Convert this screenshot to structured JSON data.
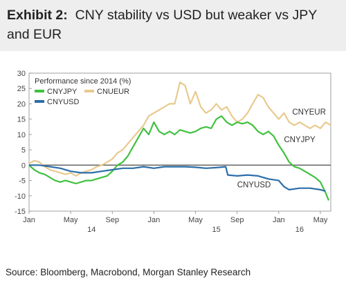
{
  "header": {
    "exhibit_label": "Exhibit 2:",
    "title": "CNY stability vs USD but weaker vs JPY and EUR"
  },
  "footer": {
    "source": "Source: Bloomberg, Macrobond, Morgan Stanley Research"
  },
  "chart_data": {
    "type": "line",
    "legend_title": "Performance since 2014 (%)",
    "legend_position": "top-left",
    "ylim": [
      -15,
      30
    ],
    "yticks": [
      30,
      25,
      20,
      15,
      10,
      5,
      0,
      -5,
      -10,
      -15
    ],
    "xlim": [
      0,
      29
    ],
    "xticks": [
      {
        "x": 0,
        "label": "Jan"
      },
      {
        "x": 4,
        "label": "May"
      },
      {
        "x": 8,
        "label": "Sep"
      },
      {
        "x": 12,
        "label": "Jan"
      },
      {
        "x": 16,
        "label": "May"
      },
      {
        "x": 20,
        "label": "Sep"
      },
      {
        "x": 24,
        "label": "Jan"
      },
      {
        "x": 28,
        "label": "May"
      }
    ],
    "year_labels": [
      {
        "x": 6,
        "label": "14"
      },
      {
        "x": 18,
        "label": "15"
      },
      {
        "x": 26,
        "label": "16"
      }
    ],
    "grid": false,
    "zero_line": true,
    "series": [
      {
        "name": "CNYJPY",
        "color": "#3fc13f",
        "label_x": 24.5,
        "label_y": 7.5,
        "points": [
          [
            0,
            0
          ],
          [
            0.5,
            -1.5
          ],
          [
            1,
            -2.5
          ],
          [
            1.5,
            -3
          ],
          [
            2,
            -4
          ],
          [
            2.5,
            -5
          ],
          [
            3,
            -5.5
          ],
          [
            3.5,
            -5
          ],
          [
            4,
            -5.5
          ],
          [
            4.5,
            -6
          ],
          [
            5,
            -5.5
          ],
          [
            5.5,
            -5
          ],
          [
            6,
            -5
          ],
          [
            6.5,
            -4.5
          ],
          [
            7,
            -4
          ],
          [
            7.5,
            -3.5
          ],
          [
            8,
            -2
          ],
          [
            8.5,
            0
          ],
          [
            9,
            1
          ],
          [
            9.5,
            3
          ],
          [
            10,
            6
          ],
          [
            10.5,
            9
          ],
          [
            11,
            12
          ],
          [
            11.5,
            10
          ],
          [
            12,
            14
          ],
          [
            12.5,
            11
          ],
          [
            13,
            10
          ],
          [
            13.5,
            11
          ],
          [
            14,
            10
          ],
          [
            14.5,
            11.5
          ],
          [
            15,
            11
          ],
          [
            15.5,
            10.5
          ],
          [
            16,
            11
          ],
          [
            16.5,
            12
          ],
          [
            17,
            12.5
          ],
          [
            17.5,
            12
          ],
          [
            18,
            15
          ],
          [
            18.5,
            16
          ],
          [
            19,
            14
          ],
          [
            19.5,
            13
          ],
          [
            20,
            14
          ],
          [
            20.5,
            13.5
          ],
          [
            21,
            14
          ],
          [
            21.5,
            13
          ],
          [
            22,
            11
          ],
          [
            22.5,
            10
          ],
          [
            23,
            11
          ],
          [
            23.5,
            9.5
          ],
          [
            24,
            6.5
          ],
          [
            24.5,
            4
          ],
          [
            25,
            1
          ],
          [
            25.5,
            -0.5
          ],
          [
            26,
            -1
          ],
          [
            26.5,
            -2
          ],
          [
            27,
            -3
          ],
          [
            27.5,
            -4
          ],
          [
            28,
            -5.5
          ],
          [
            28.5,
            -9
          ],
          [
            28.8,
            -11.5
          ]
        ]
      },
      {
        "name": "CNUEUR",
        "color": "#e8c98e",
        "label_x": 25.3,
        "label_y": 16.5,
        "points": [
          [
            0,
            0.5
          ],
          [
            0.5,
            1.5
          ],
          [
            1,
            1
          ],
          [
            1.5,
            -0.5
          ],
          [
            2,
            -1.5
          ],
          [
            2.5,
            -2
          ],
          [
            3,
            -2.5
          ],
          [
            3.5,
            -3
          ],
          [
            4,
            -2.5
          ],
          [
            4.5,
            -3.5
          ],
          [
            5,
            -2.5
          ],
          [
            5.5,
            -2
          ],
          [
            6,
            -1.5
          ],
          [
            6.5,
            -0.5
          ],
          [
            7,
            0
          ],
          [
            7.5,
            1
          ],
          [
            8,
            2
          ],
          [
            8.5,
            4
          ],
          [
            9,
            5
          ],
          [
            9.5,
            7
          ],
          [
            10,
            9
          ],
          [
            10.5,
            11
          ],
          [
            11,
            13
          ],
          [
            11.5,
            16
          ],
          [
            12,
            17
          ],
          [
            12.5,
            18
          ],
          [
            13,
            19
          ],
          [
            13.5,
            20
          ],
          [
            14,
            20
          ],
          [
            14.5,
            27
          ],
          [
            15,
            26
          ],
          [
            15.5,
            20
          ],
          [
            16,
            24
          ],
          [
            16.5,
            19
          ],
          [
            17,
            17
          ],
          [
            17.5,
            18
          ],
          [
            18,
            20
          ],
          [
            18.5,
            18
          ],
          [
            19,
            19
          ],
          [
            19.5,
            16
          ],
          [
            20,
            14
          ],
          [
            20.5,
            15
          ],
          [
            21,
            17
          ],
          [
            21.5,
            20
          ],
          [
            22,
            23
          ],
          [
            22.5,
            22
          ],
          [
            23,
            19
          ],
          [
            23.5,
            17
          ],
          [
            24,
            15
          ],
          [
            24.5,
            17
          ],
          [
            25,
            14
          ],
          [
            25.5,
            13
          ],
          [
            26,
            14
          ],
          [
            26.5,
            13
          ],
          [
            27,
            12
          ],
          [
            27.5,
            13
          ],
          [
            28,
            12
          ],
          [
            28.5,
            14
          ],
          [
            29,
            13
          ]
        ]
      },
      {
        "name": "CNYUSD",
        "color": "#2b6ea8",
        "label_x": 20,
        "label_y": -7.2,
        "points": [
          [
            0,
            0
          ],
          [
            1,
            0
          ],
          [
            2,
            -0.5
          ],
          [
            3,
            -1
          ],
          [
            4,
            -2
          ],
          [
            5,
            -2.5
          ],
          [
            6,
            -2.5
          ],
          [
            7,
            -2
          ],
          [
            8,
            -1.5
          ],
          [
            9,
            -1
          ],
          [
            10,
            -1
          ],
          [
            11,
            -0.5
          ],
          [
            12,
            -1
          ],
          [
            13,
            -0.5
          ],
          [
            14,
            -0.5
          ],
          [
            15,
            -0.5
          ],
          [
            16,
            -0.7
          ],
          [
            17,
            -1
          ],
          [
            18,
            -0.8
          ],
          [
            18.9,
            -0.5
          ],
          [
            19.1,
            -3.2
          ],
          [
            20,
            -3.5
          ],
          [
            21,
            -3.2
          ],
          [
            22,
            -3.5
          ],
          [
            23,
            -4.5
          ],
          [
            24,
            -5
          ],
          [
            24.5,
            -7
          ],
          [
            25,
            -8
          ],
          [
            26,
            -7.5
          ],
          [
            27,
            -7.5
          ],
          [
            28,
            -8
          ],
          [
            28.5,
            -8.5
          ]
        ]
      }
    ]
  }
}
